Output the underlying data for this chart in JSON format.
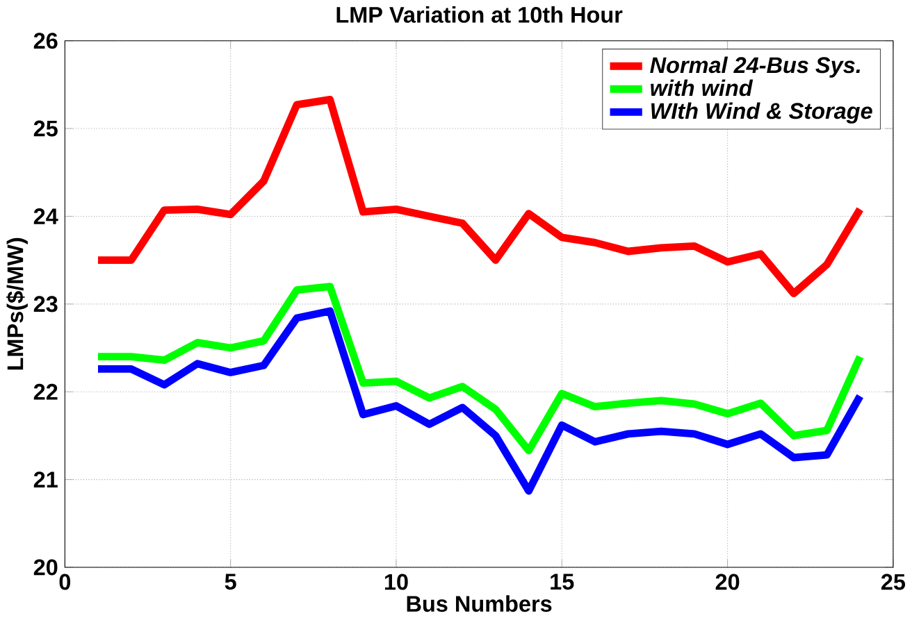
{
  "chart_data": {
    "type": "line",
    "title": "LMP Variation at 10th Hour",
    "xlabel": "Bus Numbers",
    "ylabel": "LMPs($/MW)",
    "x": [
      1,
      2,
      3,
      4,
      5,
      6,
      7,
      8,
      9,
      10,
      11,
      12,
      13,
      14,
      15,
      16,
      17,
      18,
      19,
      20,
      21,
      22,
      23,
      24
    ],
    "series": [
      {
        "name": "*Normal 24-Bus Sys.*",
        "color": "#ff0000",
        "values": [
          23.5,
          23.5,
          24.07,
          24.08,
          24.02,
          24.4,
          25.27,
          25.33,
          24.05,
          24.08,
          24.0,
          23.92,
          23.5,
          24.03,
          23.76,
          23.7,
          23.6,
          23.64,
          23.66,
          23.48,
          23.57,
          23.12,
          23.45,
          24.08
        ]
      },
      {
        "name": "*with wind*",
        "color": "#00ff00",
        "values": [
          22.4,
          22.4,
          22.36,
          22.56,
          22.5,
          22.58,
          23.16,
          23.2,
          22.1,
          22.12,
          21.93,
          22.06,
          21.8,
          21.33,
          21.98,
          21.83,
          21.87,
          21.9,
          21.86,
          21.75,
          21.87,
          21.5,
          21.56,
          22.4
        ]
      },
      {
        "name": "*WIth Wind & Storage*",
        "color": "#0000ff",
        "values": [
          22.26,
          22.26,
          22.08,
          22.32,
          22.22,
          22.3,
          22.84,
          22.92,
          21.74,
          21.84,
          21.63,
          21.82,
          21.5,
          20.87,
          21.62,
          21.43,
          21.52,
          21.55,
          21.52,
          21.4,
          21.52,
          21.25,
          21.28,
          21.95
        ]
      }
    ],
    "xlim": [
      0,
      25
    ],
    "xticks": [
      0,
      5,
      10,
      15,
      20,
      25
    ],
    "ylim": [
      20,
      26
    ],
    "yticks": [
      20,
      21,
      22,
      23,
      24,
      25,
      26
    ],
    "grid": true,
    "legend": "top right",
    "marker": "none",
    "line_style": "solid"
  }
}
